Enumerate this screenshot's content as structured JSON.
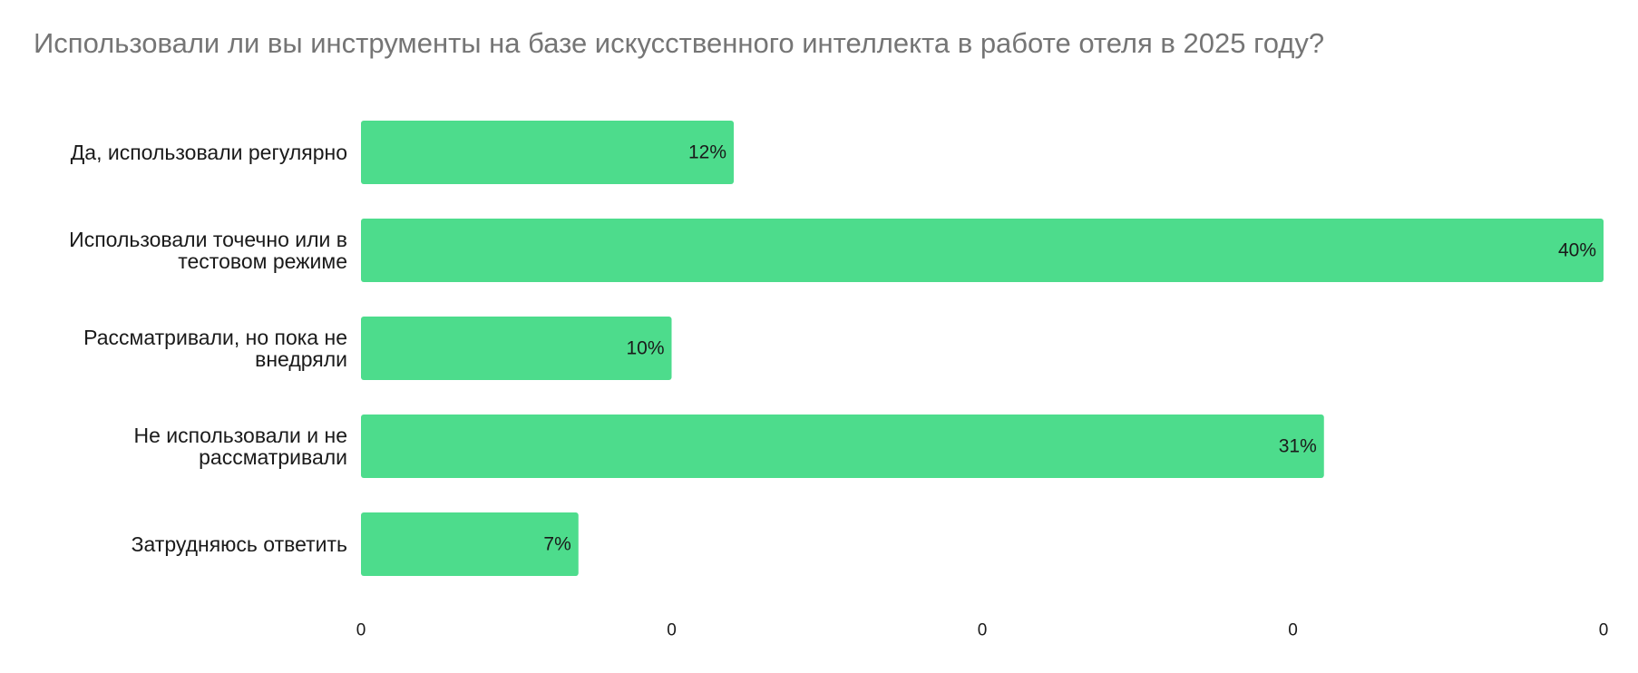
{
  "chart_data": {
    "type": "bar",
    "orientation": "horizontal",
    "title": "Использовали ли вы инструменты на базе искусственного интеллекта в работе отеля в 2025 году?",
    "categories": [
      "Да, использовали регулярно",
      "Использовали точечно или в тестовом режиме",
      "Рассматривали, но пока не внедряли",
      "Не использовали и не рассматривали",
      "Затрудняюсь ответить"
    ],
    "category_lines": [
      [
        "Да, использовали регулярно"
      ],
      [
        "Использовали точечно или в",
        "тестовом режиме"
      ],
      [
        "Рассматривали, но пока не",
        "внедряли"
      ],
      [
        "Не использовали и не",
        "рассматривали"
      ],
      [
        "Затрудняюсь ответить"
      ]
    ],
    "values": [
      12,
      40,
      10,
      31,
      7
    ],
    "value_labels": [
      "12%",
      "40%",
      "10%",
      "31%",
      "7%"
    ],
    "xlim": [
      0,
      40
    ],
    "x_tick_labels": [
      "0",
      "0",
      "0",
      "0",
      "0"
    ],
    "bar_color": "#4ddc8c",
    "grid": false,
    "legend": "none"
  }
}
